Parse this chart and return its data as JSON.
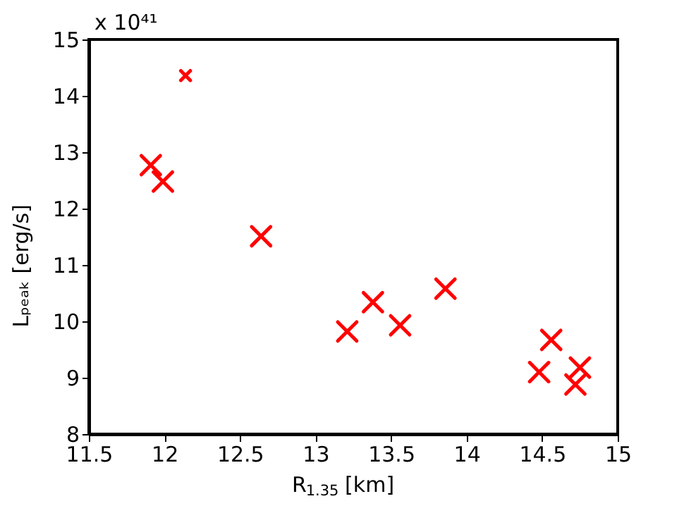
{
  "chart_data": {
    "type": "scatter",
    "xlabel": "R$_{1.35}$ [km]",
    "ylabel": "Lₚₑₐₖ [erg/s]",
    "annotations": [
      "x 10⁴¹"
    ],
    "xlim": [
      11.5,
      15
    ],
    "xticks": [
      11.5,
      12,
      12.5,
      13,
      13.5,
      14,
      14.5,
      15
    ],
    "ylim": [
      8,
      15
    ],
    "yticks": [
      8,
      9,
      10,
      11,
      12,
      13,
      14,
      15
    ],
    "grid": false,
    "marker": "cross",
    "series": [
      {
        "color": "#ff0000",
        "x": [
          11.91,
          11.99,
          12.64,
          13.21,
          13.38,
          13.56,
          13.86,
          14.56,
          14.48,
          14.75,
          14.72
        ],
        "values": [
          12.77,
          12.48,
          11.51,
          9.82,
          10.34,
          9.93,
          10.58,
          9.67,
          9.1,
          9.18,
          8.88
        ]
      },
      {
        "color": "#ff0000",
        "x": [
          12.14
        ],
        "values": [
          14.36
        ]
      }
    ]
  }
}
